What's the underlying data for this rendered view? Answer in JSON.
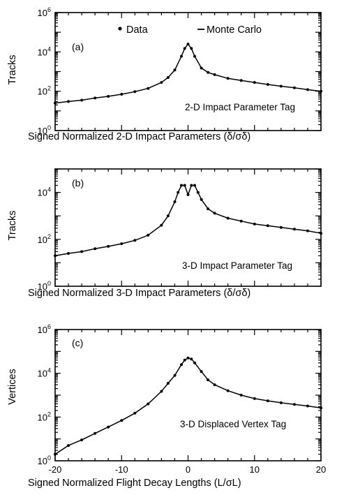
{
  "legend": {
    "data_label": "Data",
    "mc_label": "Monte Carlo"
  },
  "chart_data": [
    {
      "type": "line",
      "panel": "(a)",
      "annotation": "2-D Impact Parameter Tag",
      "title": "",
      "xlabel": "Signed Normalized 2-D Impact Parameters  (δ/σδ)",
      "ylabel": "Tracks",
      "xlim": [
        -20,
        20
      ],
      "ylim": [
        1,
        1000000
      ],
      "yscale": "log",
      "yticks": [
        "10^0",
        "10^2",
        "10^4",
        "10^6"
      ],
      "x_tick_labels_shown": false,
      "legend": "top",
      "x": [
        -20,
        -18,
        -16,
        -14,
        -12,
        -10,
        -8,
        -6,
        -4,
        -3,
        -2,
        -1,
        -0.5,
        0,
        0.5,
        1,
        2,
        3,
        4,
        6,
        8,
        10,
        12,
        14,
        16,
        18,
        20
      ],
      "series": [
        {
          "name": "Data",
          "values": [
            25,
            30,
            35,
            45,
            55,
            70,
            95,
            140,
            280,
            500,
            1200,
            6000,
            15000,
            25000,
            15000,
            6000,
            1500,
            900,
            700,
            450,
            350,
            280,
            220,
            180,
            150,
            120,
            100
          ]
        },
        {
          "name": "Monte Carlo",
          "values": [
            25,
            30,
            35,
            45,
            55,
            70,
            95,
            140,
            280,
            500,
            1200,
            6000,
            15000,
            25000,
            15000,
            6000,
            1500,
            900,
            700,
            450,
            350,
            280,
            220,
            180,
            150,
            120,
            100
          ]
        }
      ]
    },
    {
      "type": "line",
      "panel": "(b)",
      "annotation": "3-D Impact Parameter Tag",
      "title": "",
      "xlabel": "Signed Normalized 3-D Impact Parameters  (δ/σδ)",
      "ylabel": "Tracks",
      "xlim": [
        -20,
        20
      ],
      "ylim": [
        1,
        100000
      ],
      "yscale": "log",
      "yticks": [
        "10^0",
        "10^2",
        "10^4"
      ],
      "x_tick_labels_shown": false,
      "x": [
        -20,
        -18,
        -16,
        -14,
        -12,
        -10,
        -8,
        -6,
        -4,
        -3,
        -2,
        -1.5,
        -1,
        -0.5,
        0,
        0.5,
        1,
        1.5,
        2,
        3,
        4,
        6,
        8,
        10,
        12,
        14,
        16,
        18,
        20
      ],
      "series": [
        {
          "name": "Data",
          "values": [
            20,
            25,
            30,
            40,
            50,
            65,
            90,
            150,
            400,
            1000,
            4000,
            10000,
            20000,
            20000,
            8000,
            20000,
            20000,
            10000,
            5000,
            2000,
            1300,
            800,
            600,
            450,
            380,
            320,
            270,
            230,
            180
          ]
        },
        {
          "name": "Monte Carlo",
          "values": [
            20,
            25,
            30,
            40,
            50,
            65,
            90,
            150,
            400,
            1000,
            4000,
            10000,
            20000,
            20000,
            8000,
            20000,
            20000,
            10000,
            5000,
            2000,
            1300,
            800,
            600,
            450,
            380,
            320,
            270,
            230,
            180
          ]
        }
      ]
    },
    {
      "type": "line",
      "panel": "(c)",
      "annotation": "3-D Displaced Vertex Tag",
      "title": "",
      "xlabel": "Signed Normalized Flight Decay Lengths  (L/σL)",
      "ylabel": "Vertices",
      "xlim": [
        -20,
        20
      ],
      "ylim": [
        1,
        1000000
      ],
      "yscale": "log",
      "yticks": [
        "10^0",
        "10^2",
        "10^4",
        "10^6"
      ],
      "xticks": [
        -20,
        -10,
        0,
        10,
        20
      ],
      "x": [
        -20,
        -18,
        -16,
        -14,
        -12,
        -10,
        -8,
        -6,
        -4,
        -3,
        -2,
        -1,
        -0.5,
        0,
        0.5,
        1,
        2,
        3,
        4,
        6,
        8,
        10,
        12,
        14,
        16,
        18,
        20
      ],
      "series": [
        {
          "name": "Data",
          "values": [
            2,
            5,
            9,
            18,
            35,
            70,
            150,
            400,
            1500,
            3500,
            8000,
            25000,
            40000,
            50000,
            45000,
            30000,
            12000,
            5000,
            3000,
            1600,
            1000,
            700,
            550,
            450,
            380,
            320,
            260
          ]
        },
        {
          "name": "Monte Carlo",
          "values": [
            2,
            5,
            9,
            18,
            35,
            70,
            150,
            400,
            1500,
            3500,
            8000,
            25000,
            40000,
            50000,
            45000,
            30000,
            12000,
            5000,
            3000,
            1600,
            1000,
            700,
            550,
            450,
            380,
            320,
            260
          ]
        }
      ]
    }
  ]
}
